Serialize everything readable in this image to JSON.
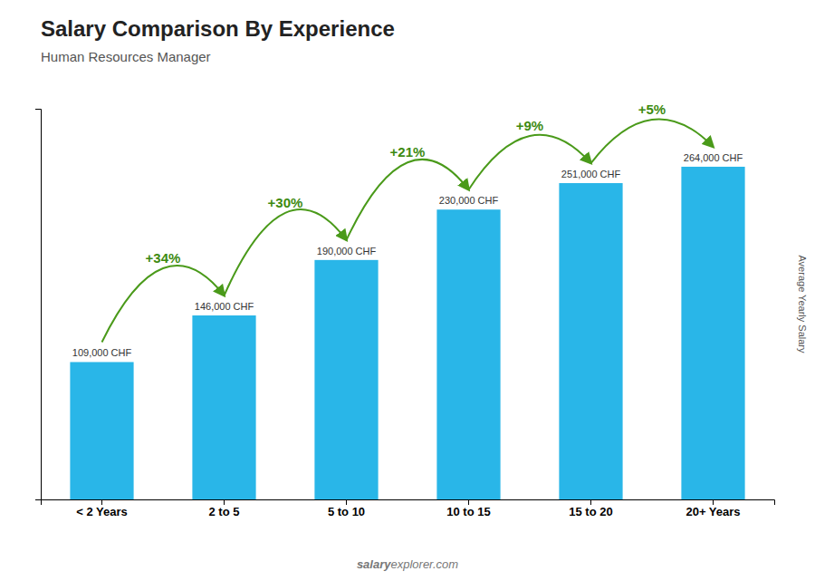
{
  "chart_data": {
    "type": "bar",
    "title": "Salary Comparison By Experience",
    "subtitle": "Human Resources Manager",
    "y_label": "Average Yearly Salary",
    "categories": [
      "< 2 Years",
      "2 to 5",
      "5 to 10",
      "10 to 15",
      "15 to 20",
      "20+ Years"
    ],
    "values": [
      109000,
      146000,
      190000,
      230000,
      251000,
      264000
    ],
    "value_labels": [
      "109,000 CHF",
      "146,000 CHF",
      "190,000 CHF",
      "230,000 CHF",
      "251,000 CHF",
      "264,000 CHF"
    ],
    "data_labels": true,
    "annotations": [
      "+34%",
      "+30%",
      "+21%",
      "+9%",
      "+5%"
    ],
    "watermark": [
      "salary",
      "explorer.com"
    ],
    "color": "#29b6e8",
    "ylim": [
      0,
      310000
    ],
    "grid": false,
    "tick_labels": "x"
  }
}
